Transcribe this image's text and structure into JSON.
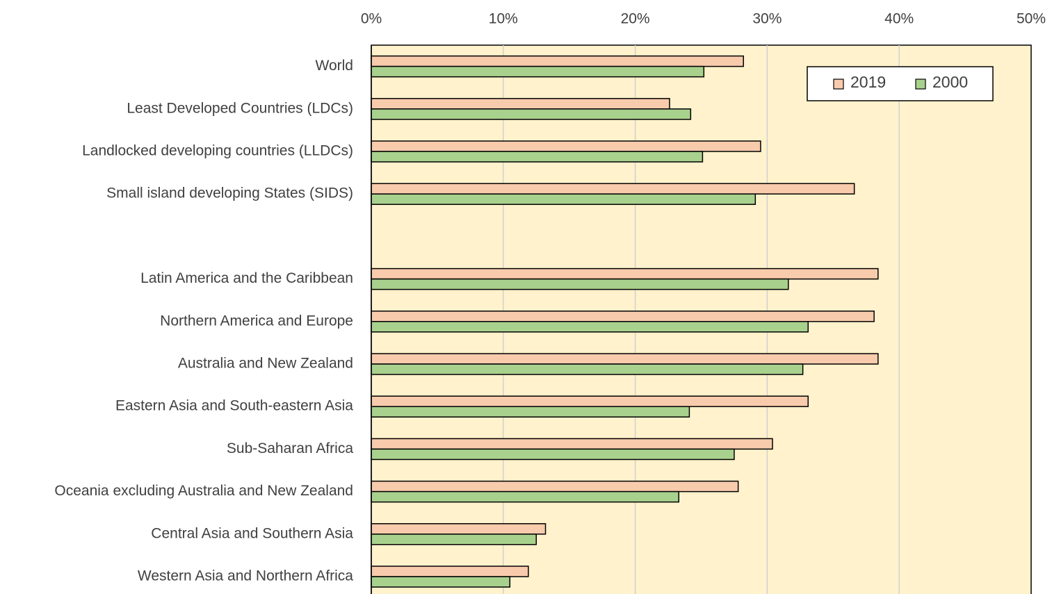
{
  "chart_data": {
    "type": "hbar",
    "categories": [
      "World",
      "Least Developed Countries (LDCs)",
      "Landlocked developing countries (LLDCs)",
      "Small island developing States (SIDS)",
      null,
      "Latin America and the Caribbean",
      "Northern America and Europe",
      "Australia and New Zealand",
      "Eastern Asia and South-eastern Asia",
      "Sub-Saharan Africa",
      "Oceania excluding Australia and New Zealand",
      "Central Asia and Southern Asia",
      "Western Asia and Northern Africa"
    ],
    "series": [
      {
        "name": "2019",
        "color": "#f8cbad",
        "values": [
          28.2,
          22.6,
          29.5,
          36.6,
          null,
          38.4,
          38.1,
          38.4,
          33.1,
          30.4,
          27.8,
          13.2,
          11.9
        ]
      },
      {
        "name": "2000",
        "color": "#a9d18e",
        "values": [
          25.2,
          24.2,
          25.1,
          29.1,
          null,
          31.6,
          33.1,
          32.7,
          24.1,
          27.5,
          23.3,
          12.5,
          10.5
        ]
      }
    ],
    "xlim": [
      0,
      50
    ],
    "xticks": [
      {
        "value": 0,
        "label": "0%"
      },
      {
        "value": 10,
        "label": "10%"
      },
      {
        "value": 20,
        "label": "20%"
      },
      {
        "value": 30,
        "label": "30%"
      },
      {
        "value": 40,
        "label": "40%"
      },
      {
        "value": 50,
        "label": "50%"
      }
    ],
    "grid": true,
    "legend": "upper right",
    "background": "#fff2cc"
  }
}
